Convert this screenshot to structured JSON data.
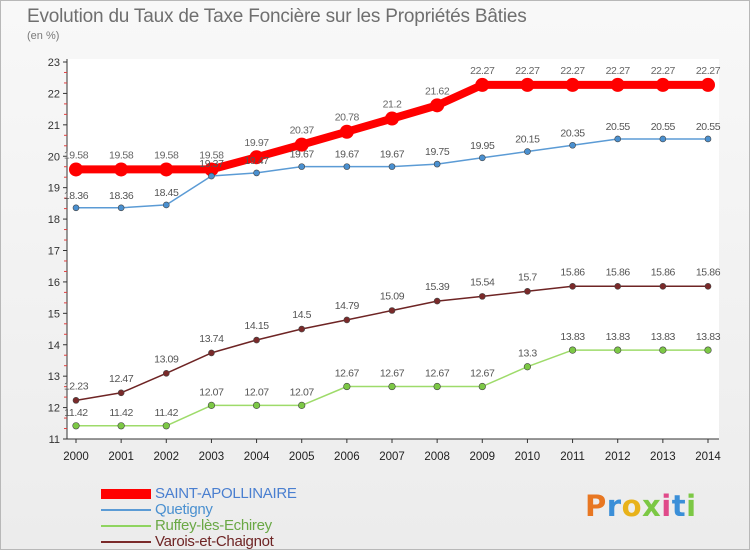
{
  "header": {
    "title": "Evolution du Taux de Taxe Foncière sur les Propriétés Bâties",
    "unit": "(en %)"
  },
  "brand": {
    "logo_text": "Proxiti"
  },
  "chart_data": {
    "type": "line",
    "title": "Evolution du Taux de Taxe Foncière sur les Propriétés Bâties",
    "ylabel": "(en %)",
    "xlabel": "",
    "x": [
      "2000",
      "2001",
      "2002",
      "2003",
      "2004",
      "2005",
      "2006",
      "2007",
      "2008",
      "2009",
      "2010",
      "2011",
      "2012",
      "2013",
      "2014"
    ],
    "ylim": [
      11,
      23
    ],
    "yticks": [
      11,
      12,
      13,
      14,
      15,
      16,
      17,
      18,
      19,
      20,
      21,
      22,
      23
    ],
    "grid": false,
    "legend_position": "bottom-left",
    "series": [
      {
        "name": "SAINT-APOLLINAIRE",
        "color": "#ff0000",
        "values": [
          19.58,
          19.58,
          19.58,
          19.58,
          19.97,
          20.37,
          20.78,
          21.2,
          21.62,
          22.27,
          22.27,
          22.27,
          22.27,
          22.27,
          22.27
        ],
        "labels": [
          "19.58",
          "19.58",
          "19.58",
          "19.58",
          "19.97",
          "20.37",
          "20.78",
          "21.2",
          "21.62",
          "22.27",
          "22.27",
          "22.27",
          "22.27",
          "22.27",
          "22.27"
        ]
      },
      {
        "name": "Quetigny",
        "color": "#5b9bd5",
        "values": [
          18.36,
          18.36,
          18.45,
          19.37,
          19.47,
          19.67,
          19.67,
          19.67,
          19.75,
          19.95,
          20.15,
          20.35,
          20.55,
          20.55,
          20.55
        ],
        "labels": [
          "18.36",
          "18.36",
          "18.45",
          "19.37",
          "19.47",
          "19.67",
          "19.67",
          "19.67",
          "19.75",
          "19.95",
          "20.15",
          "20.35",
          "20.55",
          "20.55",
          "20.55"
        ]
      },
      {
        "name": "Ruffey-lès-Echirey",
        "color": "#8fd460",
        "values": [
          11.42,
          11.42,
          11.42,
          12.07,
          12.07,
          12.07,
          12.67,
          12.67,
          12.67,
          12.67,
          13.3,
          13.83,
          13.83,
          13.83,
          13.83
        ],
        "labels": [
          "11.42",
          "11.42",
          "11.42",
          "12.07",
          "12.07",
          "12.07",
          "12.67",
          "12.67",
          "12.67",
          "12.67",
          "13.3",
          "13.83",
          "13.83",
          "13.83",
          "13.83"
        ]
      },
      {
        "name": "Varois-et-Chaignot",
        "color": "#7a2a2a",
        "values": [
          12.23,
          12.47,
          13.09,
          13.74,
          14.15,
          14.5,
          14.79,
          15.09,
          15.39,
          15.54,
          15.7,
          15.86,
          15.86,
          15.86,
          15.86
        ],
        "labels": [
          "12.23",
          "12.47",
          "13.09",
          "13.74",
          "14.15",
          "14.5",
          "14.79",
          "15.09",
          "15.39",
          "15.54",
          "15.7",
          "15.86",
          "15.86",
          "15.86",
          "15.86"
        ]
      }
    ]
  }
}
